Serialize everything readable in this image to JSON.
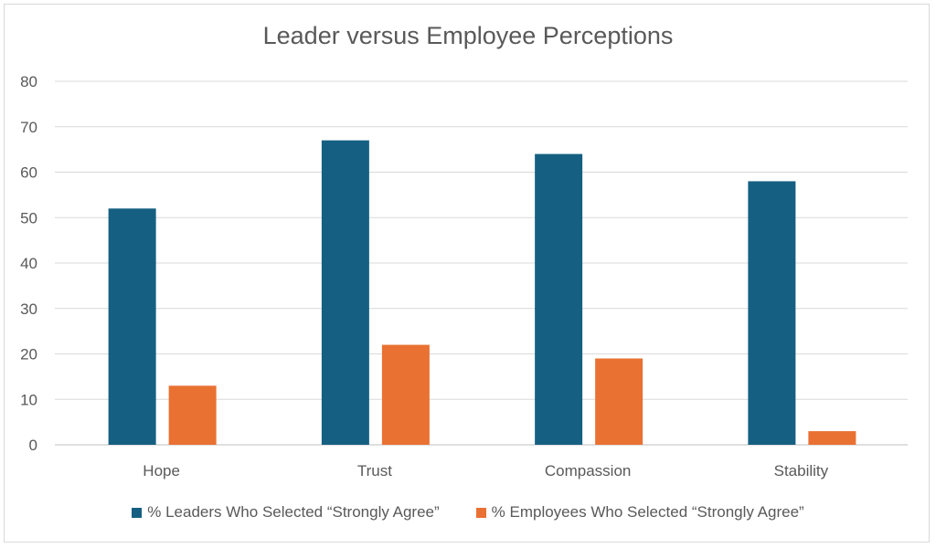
{
  "chart_data": {
    "type": "bar",
    "title": "Leader versus Employee Perceptions",
    "categories": [
      "Hope",
      "Trust",
      "Compassion",
      "Stability"
    ],
    "series": [
      {
        "name": "% Leaders Who Selected “Strongly Agree”",
        "values": [
          52,
          67,
          64,
          58
        ],
        "color": "#156082"
      },
      {
        "name": "% Employees Who Selected “Strongly Agree”",
        "values": [
          13,
          22,
          19,
          3
        ],
        "color": "#E97132"
      }
    ],
    "xlabel": "",
    "ylabel": "",
    "ylim": [
      0,
      80
    ],
    "yticks": [
      "0",
      "10",
      "20",
      "30",
      "40",
      "50",
      "60",
      "70",
      "80"
    ],
    "grid": true,
    "legend": "bottom"
  }
}
